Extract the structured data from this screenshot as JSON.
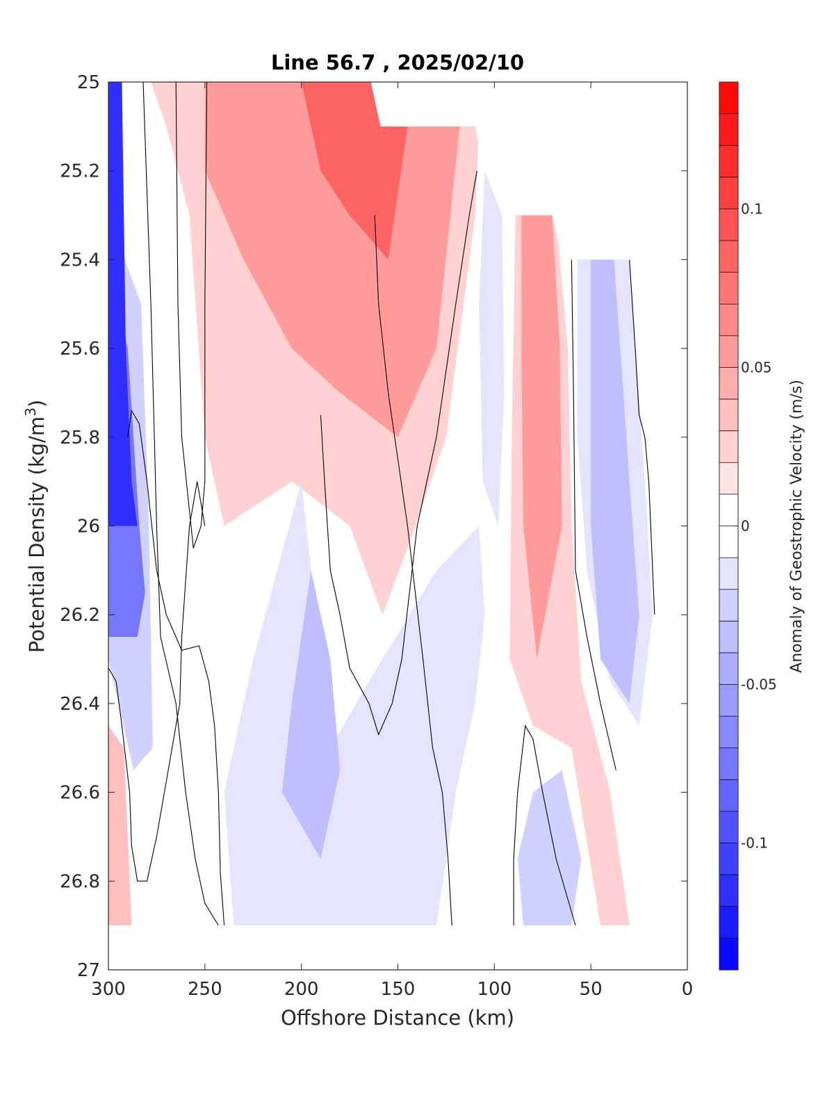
{
  "chart_data": {
    "type": "contour",
    "title": "Line 56.7 , 2025/02/10",
    "xlabel": "Offshore Distance (km)",
    "ylabel": "Potential Density (kg/m",
    "ylabel_sup": "3",
    "ylabel_end": ")",
    "xlim": [
      300,
      0
    ],
    "ylim": [
      25,
      27
    ],
    "y_reversed": true,
    "x_ticks": [
      300,
      250,
      200,
      150,
      100,
      50,
      0
    ],
    "x_tick_labels": [
      "300",
      "250",
      "200",
      "150",
      "100",
      "50",
      "0"
    ],
    "y_ticks": [
      25,
      25.2,
      25.4,
      25.6,
      25.8,
      26,
      26.2,
      26.4,
      26.6,
      26.8,
      27
    ],
    "y_tick_labels": [
      "25",
      "25.2",
      "25.4",
      "25.6",
      "25.8",
      "26",
      "26.2",
      "26.4",
      "26.6",
      "26.8",
      "27"
    ],
    "grid": false,
    "colorbar": {
      "label": "Anomaly of Geostrophic Velocity (m/s)",
      "range": [
        -0.14,
        0.14
      ],
      "levels": 28,
      "ticks": [
        0.1,
        0.05,
        0,
        -0.05,
        -0.1
      ],
      "tick_labels": [
        "0.1",
        "0.05",
        "0",
        "-0.05",
        "-0.1"
      ],
      "colormap": "blue-white-red",
      "min_color": "#0000ff",
      "max_color": "#ff0000"
    },
    "data_extent": {
      "top_boundary": [
        [
          300,
          25
        ],
        [
          164,
          25
        ],
        [
          159,
          25.1
        ],
        [
          118,
          25.1
        ],
        [
          110,
          25.1
        ],
        [
          105,
          25.2
        ],
        [
          86,
          25.3
        ],
        [
          70,
          25.3
        ],
        [
          65,
          25.4
        ],
        [
          30,
          25.4
        ],
        [
          20,
          25.5
        ],
        [
          10,
          25.5
        ],
        [
          0,
          25.6
        ]
      ],
      "bottom_boundary": 26.9
    },
    "fields": [
      {
        "name": "strong-negative-coastal",
        "value": -0.12,
        "points": [
          [
            300,
            25
          ],
          [
            293,
            25
          ],
          [
            291,
            25.6
          ],
          [
            288,
            25.9
          ],
          [
            285,
            26.0
          ],
          [
            300,
            26.0
          ]
        ]
      },
      {
        "name": "negative-coastal-mid",
        "value": -0.08,
        "points": [
          [
            300,
            25.4
          ],
          [
            290,
            25.6
          ],
          [
            284,
            26.0
          ],
          [
            281,
            26.15
          ],
          [
            285,
            26.25
          ],
          [
            300,
            26.25
          ]
        ]
      },
      {
        "name": "weak-negative-coastal",
        "value": -0.03,
        "points": [
          [
            300,
            25.3
          ],
          [
            283,
            25.5
          ],
          [
            279,
            26.0
          ],
          [
            277,
            26.5
          ],
          [
            287,
            26.55
          ],
          [
            300,
            26.3
          ]
        ]
      },
      {
        "name": "positive-core-upper",
        "value": 0.05,
        "points": [
          [
            250,
            25
          ],
          [
            164,
            25
          ],
          [
            159,
            25.1
          ],
          [
            118,
            25.1
          ],
          [
            130,
            25.6
          ],
          [
            150,
            25.8
          ],
          [
            180,
            25.7
          ],
          [
            205,
            25.6
          ],
          [
            230,
            25.4
          ],
          [
            250,
            25.2
          ]
        ]
      },
      {
        "name": "positive-core-strong",
        "value": 0.08,
        "points": [
          [
            200,
            25
          ],
          [
            164,
            25
          ],
          [
            159,
            25.1
          ],
          [
            145,
            25.1
          ],
          [
            155,
            25.4
          ],
          [
            175,
            25.3
          ],
          [
            190,
            25.2
          ]
        ]
      },
      {
        "name": "weak-positive-upper",
        "value": 0.02,
        "points": [
          [
            278,
            25
          ],
          [
            164,
            25
          ],
          [
            159,
            25.1
          ],
          [
            108,
            25.1
          ],
          [
            110,
            25.3
          ],
          [
            125,
            25.8
          ],
          [
            145,
            26.05
          ],
          [
            158,
            26.2
          ],
          [
            175,
            26.0
          ],
          [
            205,
            25.9
          ],
          [
            240,
            26.0
          ],
          [
            250,
            25.8
          ],
          [
            258,
            25.3
          ],
          [
            270,
            25.1
          ],
          [
            278,
            25
          ]
        ]
      },
      {
        "name": "positive-nearshore-band",
        "value": 0.05,
        "points": [
          [
            86,
            25.3
          ],
          [
            70,
            25.3
          ],
          [
            66,
            25.6
          ],
          [
            65,
            26.0
          ],
          [
            78,
            26.3
          ],
          [
            85,
            26.0
          ],
          [
            86,
            25.6
          ]
        ]
      },
      {
        "name": "weak-positive-nearshore-band",
        "value": 0.02,
        "points": [
          [
            89,
            25.3
          ],
          [
            68,
            25.3
          ],
          [
            62,
            25.6
          ],
          [
            60,
            26.0
          ],
          [
            55,
            26.35
          ],
          [
            40,
            26.6
          ],
          [
            30,
            26.9
          ],
          [
            45,
            26.9
          ],
          [
            60,
            26.5
          ],
          [
            80,
            26.45
          ],
          [
            92,
            26.3
          ],
          [
            91,
            25.8
          ]
        ]
      },
      {
        "name": "negative-nearshore",
        "value": -0.04,
        "points": [
          [
            50,
            25.4
          ],
          [
            38,
            25.4
          ],
          [
            30,
            25.9
          ],
          [
            25,
            26.2
          ],
          [
            30,
            26.4
          ],
          [
            45,
            26.3
          ],
          [
            50,
            26.0
          ]
        ]
      },
      {
        "name": "weak-negative-nearshore",
        "value": -0.02,
        "points": [
          [
            57,
            25.4
          ],
          [
            30,
            25.4
          ],
          [
            22,
            25.9
          ],
          [
            18,
            26.2
          ],
          [
            25,
            26.45
          ],
          [
            40,
            26.35
          ],
          [
            52,
            26.1
          ],
          [
            57,
            25.8
          ]
        ]
      },
      {
        "name": "weak-negative-offshore-lower",
        "value": -0.02,
        "points": [
          [
            200,
            25.9
          ],
          [
            225,
            26.3
          ],
          [
            240,
            26.6
          ],
          [
            235,
            26.9
          ],
          [
            130,
            26.9
          ],
          [
            120,
            26.6
          ],
          [
            110,
            26.4
          ],
          [
            105,
            26.2
          ],
          [
            108,
            26.0
          ],
          [
            130,
            26.1
          ],
          [
            165,
            26.35
          ],
          [
            185,
            26.5
          ]
        ]
      },
      {
        "name": "negative-offshore-lower",
        "value": -0.04,
        "points": [
          [
            195,
            26.1
          ],
          [
            205,
            26.4
          ],
          [
            210,
            26.6
          ],
          [
            190,
            26.75
          ],
          [
            180,
            26.55
          ],
          [
            185,
            26.3
          ]
        ]
      },
      {
        "name": "weak-negative-bottom-nearshore",
        "value": -0.03,
        "points": [
          [
            80,
            26.6
          ],
          [
            65,
            26.55
          ],
          [
            55,
            26.75
          ],
          [
            60,
            26.9
          ],
          [
            85,
            26.9
          ],
          [
            88,
            26.75
          ]
        ]
      },
      {
        "name": "weak-negative-offshore-mid",
        "value": -0.02,
        "points": [
          [
            105,
            25.2
          ],
          [
            96,
            25.3
          ],
          [
            95,
            25.7
          ],
          [
            98,
            26.0
          ],
          [
            106,
            25.9
          ],
          [
            108,
            25.5
          ]
        ]
      },
      {
        "name": "weak-positive-coastal-bottom",
        "value": 0.03,
        "points": [
          [
            300,
            26.45
          ],
          [
            292,
            26.5
          ],
          [
            288,
            26.9
          ],
          [
            300,
            26.9
          ]
        ]
      }
    ],
    "zero_contours": [
      [
        [
          282,
          25
        ],
        [
          278,
          25.5
        ],
        [
          275,
          26.0
        ],
        [
          273,
          26.25
        ],
        [
          265,
          26.4
        ],
        [
          260,
          26.6
        ],
        [
          255,
          26.75
        ],
        [
          250,
          26.85
        ],
        [
          243,
          26.9
        ]
      ],
      [
        [
          265,
          25
        ],
        [
          264,
          25.5
        ],
        [
          262,
          25.8
        ],
        [
          256,
          26.05
        ],
        [
          252,
          26.0
        ],
        [
          250,
          25.9
        ],
        [
          250,
          25.5
        ],
        [
          249,
          25.0
        ]
      ],
      [
        [
          300,
          26.32
        ],
        [
          296,
          26.35
        ],
        [
          293,
          26.45
        ],
        [
          289,
          26.6
        ],
        [
          288,
          26.72
        ],
        [
          285,
          26.8
        ],
        [
          280,
          26.8
        ],
        [
          275,
          26.7
        ],
        [
          269,
          26.55
        ],
        [
          263,
          26.4
        ],
        [
          262,
          26.25
        ],
        [
          258,
          26.0
        ],
        [
          254,
          25.9
        ],
        [
          250,
          26.0
        ]
      ],
      [
        [
          240,
          26.9
        ],
        [
          242,
          26.78
        ],
        [
          243,
          26.6
        ],
        [
          245,
          26.45
        ],
        [
          248,
          26.35
        ],
        [
          253,
          26.27
        ],
        [
          262,
          26.28
        ],
        [
          270,
          26.2
        ],
        [
          275,
          26.1
        ],
        [
          280,
          25.9
        ],
        [
          284,
          25.77
        ],
        [
          288,
          25.74
        ],
        [
          290,
          25.8
        ]
      ],
      [
        [
          190,
          25.75
        ],
        [
          188,
          25.9
        ],
        [
          185,
          26.1
        ],
        [
          180,
          26.2
        ],
        [
          175,
          26.32
        ],
        [
          165,
          26.4
        ],
        [
          160,
          26.47
        ],
        [
          153,
          26.4
        ],
        [
          148,
          26.3
        ],
        [
          140,
          26.0
        ],
        [
          130,
          25.8
        ],
        [
          120,
          25.5
        ],
        [
          113,
          25.3
        ],
        [
          109,
          25.2
        ]
      ],
      [
        [
          122,
          26.9
        ],
        [
          124,
          26.75
        ],
        [
          127,
          26.6
        ],
        [
          132,
          26.5
        ],
        [
          137,
          26.3
        ],
        [
          145,
          26.0
        ],
        [
          150,
          25.85
        ],
        [
          155,
          25.7
        ],
        [
          160,
          25.5
        ],
        [
          162,
          25.3
        ]
      ],
      [
        [
          90,
          26.9
        ],
        [
          90,
          26.75
        ],
        [
          88,
          26.6
        ],
        [
          84,
          26.45
        ],
        [
          80,
          26.48
        ],
        [
          75,
          26.6
        ],
        [
          68,
          26.75
        ],
        [
          58,
          26.9
        ]
      ],
      [
        [
          60,
          25.4
        ],
        [
          59,
          25.7
        ],
        [
          58,
          26.1
        ],
        [
          52,
          26.25
        ],
        [
          45,
          26.4
        ],
        [
          37,
          26.55
        ]
      ],
      [
        [
          30,
          25.4
        ],
        [
          27,
          25.6
        ],
        [
          25,
          25.75
        ],
        [
          22,
          25.8
        ],
        [
          20,
          25.9
        ],
        [
          17,
          26.2
        ]
      ]
    ]
  }
}
